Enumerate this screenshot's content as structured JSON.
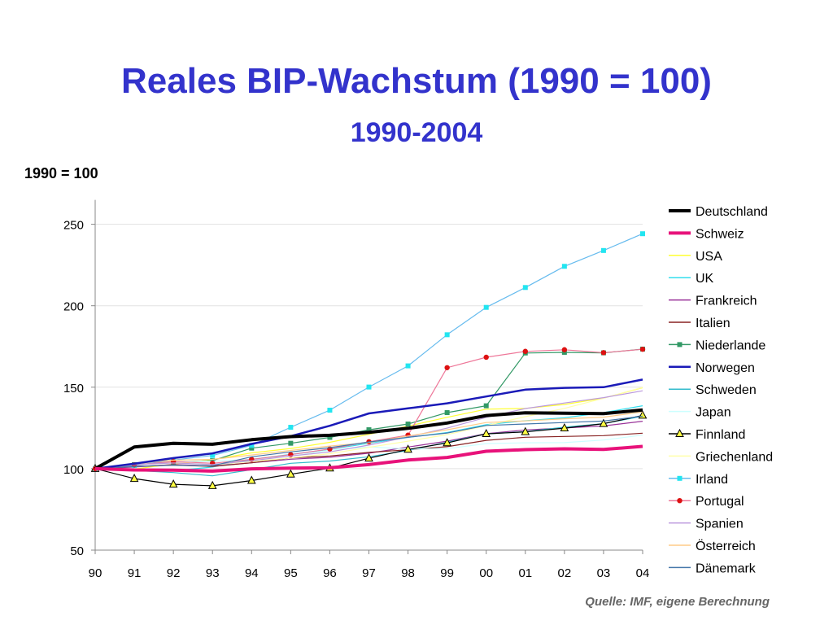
{
  "title": "Reales BIP-Wachstum (1990 = 100)",
  "subtitle": "1990-2004",
  "source": "Quelle: IMF, eigene Berechnung",
  "chart_data": {
    "type": "line",
    "ylabel": "1990 = 100",
    "xlabel": "",
    "x": [
      "90",
      "91",
      "92",
      "93",
      "94",
      "95",
      "96",
      "97",
      "98",
      "99",
      "00",
      "01",
      "02",
      "03",
      "04"
    ],
    "ylim": [
      50,
      265
    ],
    "yticks": [
      50,
      100,
      150,
      200,
      250
    ],
    "grid": true,
    "legend": "right",
    "series": [
      {
        "name": "Deutschland",
        "color": "#000000",
        "width": 4,
        "marker": "none",
        "values": [
          100,
          113.3,
          115.6,
          115.0,
          117.8,
          119.7,
          120.5,
          122.3,
          124.8,
          128.0,
          132.6,
          134.3,
          134.0,
          133.8,
          136.0
        ]
      },
      {
        "name": "Schweiz",
        "color": "#e8127a",
        "width": 4,
        "marker": "none",
        "values": [
          100,
          99.2,
          99.1,
          98.5,
          99.9,
          100.3,
          100.6,
          102.5,
          105.3,
          106.9,
          110.7,
          111.7,
          112.2,
          111.8,
          113.7
        ]
      },
      {
        "name": "USA",
        "color": "#ffff33",
        "width": 1.2,
        "marker": "none",
        "values": [
          100,
          99.8,
          102.8,
          105.5,
          109.7,
          112.4,
          116.2,
          121.1,
          126.1,
          131.5,
          136.5,
          137.0,
          139.4,
          143.3,
          149.7
        ]
      },
      {
        "name": "UK",
        "color": "#33ddee",
        "width": 1.2,
        "marker": "none",
        "values": [
          100,
          98.5,
          98.7,
          101.0,
          105.7,
          108.8,
          111.9,
          115.6,
          119.2,
          122.2,
          127.0,
          129.4,
          131.2,
          134.4,
          138.6
        ]
      },
      {
        "name": "Frankreich",
        "color": "#993399",
        "width": 1.2,
        "marker": "none",
        "values": [
          100,
          101.0,
          102.5,
          101.6,
          103.6,
          105.8,
          107.0,
          109.5,
          113.3,
          116.9,
          121.5,
          123.8,
          125.0,
          126.2,
          129.1
        ]
      },
      {
        "name": "Italien",
        "color": "#882222",
        "width": 1.2,
        "marker": "none",
        "values": [
          100,
          101.4,
          102.2,
          101.4,
          103.6,
          106.6,
          107.8,
          110.0,
          111.6,
          113.5,
          117.4,
          119.3,
          119.8,
          120.3,
          121.8
        ]
      },
      {
        "name": "Niederlande",
        "color": "#339966",
        "width": 1.2,
        "marker": "square",
        "values": [
          100,
          102.5,
          104.1,
          104.9,
          112.6,
          115.6,
          119.2,
          123.9,
          127.4,
          134.4,
          138.6,
          171.0,
          171.4,
          171.1,
          173.4
        ]
      },
      {
        "name": "Norwegen",
        "color": "#1a1ab8",
        "width": 2.5,
        "marker": "none",
        "values": [
          100,
          103.1,
          106.5,
          109.4,
          115.2,
          120.0,
          126.3,
          133.9,
          137.0,
          140.1,
          144.3,
          148.5,
          149.6,
          150.0,
          154.7
        ]
      },
      {
        "name": "Schweden",
        "color": "#33bbcc",
        "width": 1.2,
        "marker": "none",
        "values": [
          100,
          98.9,
          97.6,
          95.6,
          99.4,
          103.3,
          104.7,
          107.3,
          111.2,
          116.2,
          121.4,
          122.7,
          125.5,
          127.6,
          132.2
        ]
      },
      {
        "name": "Japan",
        "color": "#ccffff",
        "width": 1.2,
        "marker": "none",
        "values": [
          100,
          103.3,
          104.3,
          104.6,
          105.7,
          107.8,
          111.3,
          113.4,
          112.1,
          112.3,
          115.4,
          115.9,
          116.0,
          117.6,
          120.6
        ]
      },
      {
        "name": "Finnland",
        "color": "#000000",
        "width": 1.2,
        "marker": "triangle",
        "values": [
          100,
          93.9,
          90.4,
          89.5,
          92.7,
          96.6,
          100.3,
          106.4,
          111.8,
          115.8,
          121.4,
          122.6,
          124.9,
          127.6,
          132.7
        ]
      },
      {
        "name": "Griechenland",
        "color": "#ffffaa",
        "width": 1.2,
        "marker": "none",
        "values": [
          100,
          103.1,
          103.8,
          102.3,
          104.4,
          106.6,
          109.2,
          113.1,
          116.9,
          120.9,
          126.4,
          131.9,
          137.0,
          143.2,
          149.9
        ]
      },
      {
        "name": "Irland",
        "color": "#66bbee",
        "width": 1.2,
        "marker": "square-cyan",
        "values": [
          100,
          101.9,
          105.3,
          108.1,
          114.3,
          125.4,
          135.9,
          150.1,
          163.1,
          182.2,
          199.0,
          211.2,
          224.2,
          233.9,
          244.2
        ]
      },
      {
        "name": "Portugal",
        "color": "#ee7799",
        "width": 1.2,
        "marker": "dot",
        "values": [
          100,
          102.3,
          104.4,
          103.3,
          105.7,
          108.6,
          112.1,
          116.5,
          120.6,
          162.0,
          168.4,
          172.0,
          173.0,
          171.2,
          173.3
        ]
      },
      {
        "name": "Spanien",
        "color": "#bb99dd",
        "width": 1.2,
        "marker": "none",
        "values": [
          100,
          102.5,
          103.5,
          102.5,
          104.9,
          107.8,
          110.3,
          114.5,
          119.5,
          124.9,
          131.5,
          136.9,
          140.3,
          143.6,
          147.8
        ]
      },
      {
        "name": "Österreich",
        "color": "#ffcc88",
        "width": 1.2,
        "marker": "none",
        "values": [
          100,
          103.3,
          105.2,
          105.7,
          108.4,
          111.2,
          113.9,
          116.0,
          120.1,
          123.9,
          128.3,
          129.3,
          130.6,
          131.6,
          134.8
        ]
      },
      {
        "name": "Dänemark",
        "color": "#4477aa",
        "width": 1.2,
        "marker": "none",
        "values": [
          100,
          101.4,
          102.1,
          101.8,
          107.3,
          110.3,
          112.9,
          116.4,
          119.3,
          121.9,
          126.5,
          127.4,
          128.3,
          129.2,
          132.2
        ]
      }
    ]
  }
}
